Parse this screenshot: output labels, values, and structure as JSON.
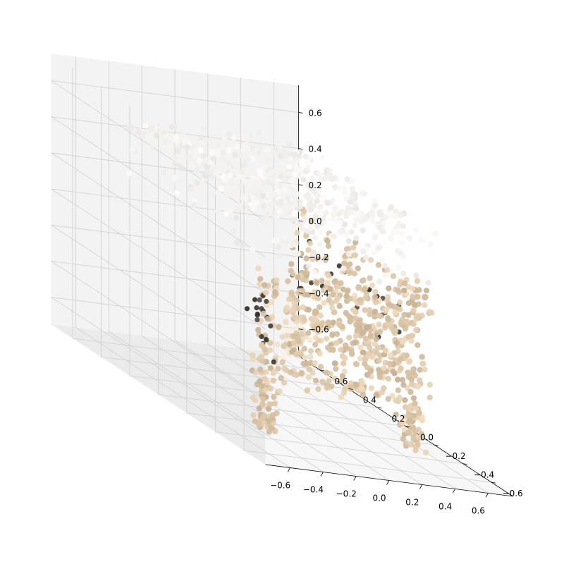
{
  "chart_data": {
    "type": "scatter",
    "projection": "3d",
    "title": "",
    "xlabel": "",
    "ylabel": "",
    "zlabel": "",
    "xlim": [
      -0.75,
      0.75
    ],
    "ylim": [
      -0.75,
      0.75
    ],
    "zlim": [
      -0.75,
      0.75
    ],
    "x_ticks": [
      "−0.6",
      "−0.4",
      "−0.2",
      "0.0",
      "0.2",
      "0.4",
      "0.6"
    ],
    "y_ticks": [
      "−0.6",
      "−0.4",
      "−0.2",
      "0.0",
      "0.2",
      "0.4",
      "0.6"
    ],
    "z_ticks": [
      "−0.6",
      "−0.4",
      "−0.2",
      "0.0",
      "0.2",
      "0.4",
      "0.6"
    ],
    "grid": true,
    "pane_colors": {
      "left": "#ebebeb",
      "right": "#f3f3f3",
      "floor": "#f7f7f7"
    },
    "point_colors": {
      "top": "#f4f1ee",
      "body": "#dcc6a8",
      "dark": "#3e3832",
      "light": "#efe2cc"
    },
    "series": [
      {
        "description": "colored point cloud of a small cabinet / nightstand",
        "regions": [
          {
            "part": "top",
            "x": [
              -0.5,
              0.55
            ],
            "y": [
              -0.5,
              0.55
            ],
            "z": [
              0.2,
              0.55
            ],
            "color": "top"
          },
          {
            "part": "body",
            "x": [
              -0.5,
              0.5
            ],
            "y": [
              -0.45,
              -0.35
            ],
            "z": [
              -0.45,
              0.2
            ],
            "color": "body"
          },
          {
            "part": "side",
            "x": [
              0.45,
              0.55
            ],
            "y": [
              -0.45,
              0.5
            ],
            "z": [
              -0.45,
              0.2
            ],
            "color": "body"
          },
          {
            "part": "leg-front-left",
            "x": [
              -0.5,
              -0.38
            ],
            "y": [
              -0.45,
              -0.35
            ],
            "z": [
              -0.7,
              -0.45
            ],
            "color": "body"
          },
          {
            "part": "leg-front-right",
            "x": [
              0.38,
              0.5
            ],
            "y": [
              -0.45,
              -0.35
            ],
            "z": [
              -0.7,
              -0.45
            ],
            "color": "body"
          },
          {
            "part": "leg-back-right",
            "x": [
              0.42,
              0.55
            ],
            "y": [
              0.4,
              0.55
            ],
            "z": [
              -0.65,
              -0.45
            ],
            "color": "light"
          },
          {
            "part": "handles",
            "x": [
              -0.55,
              0.6
            ],
            "y": [
              -0.5,
              0.55
            ],
            "z": [
              -0.3,
              0.05
            ],
            "color": "dark"
          }
        ]
      }
    ]
  }
}
